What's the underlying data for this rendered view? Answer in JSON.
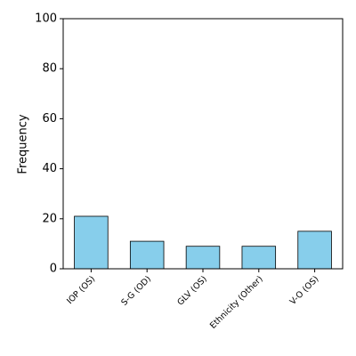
{
  "chart_data": {
    "type": "bar",
    "y_label": "Frequency",
    "categories": [
      "IOP (OS)",
      "S-G (OD)",
      "GLV (OS)",
      "Ethnicity (Other)",
      "V-O (OS)"
    ],
    "values": [
      21,
      11,
      9,
      9,
      15
    ],
    "color": "#87ceeb",
    "ylim": [
      0,
      100
    ],
    "yticks": [
      0,
      20,
      40,
      60,
      80,
      100
    ],
    "grid": false
  }
}
